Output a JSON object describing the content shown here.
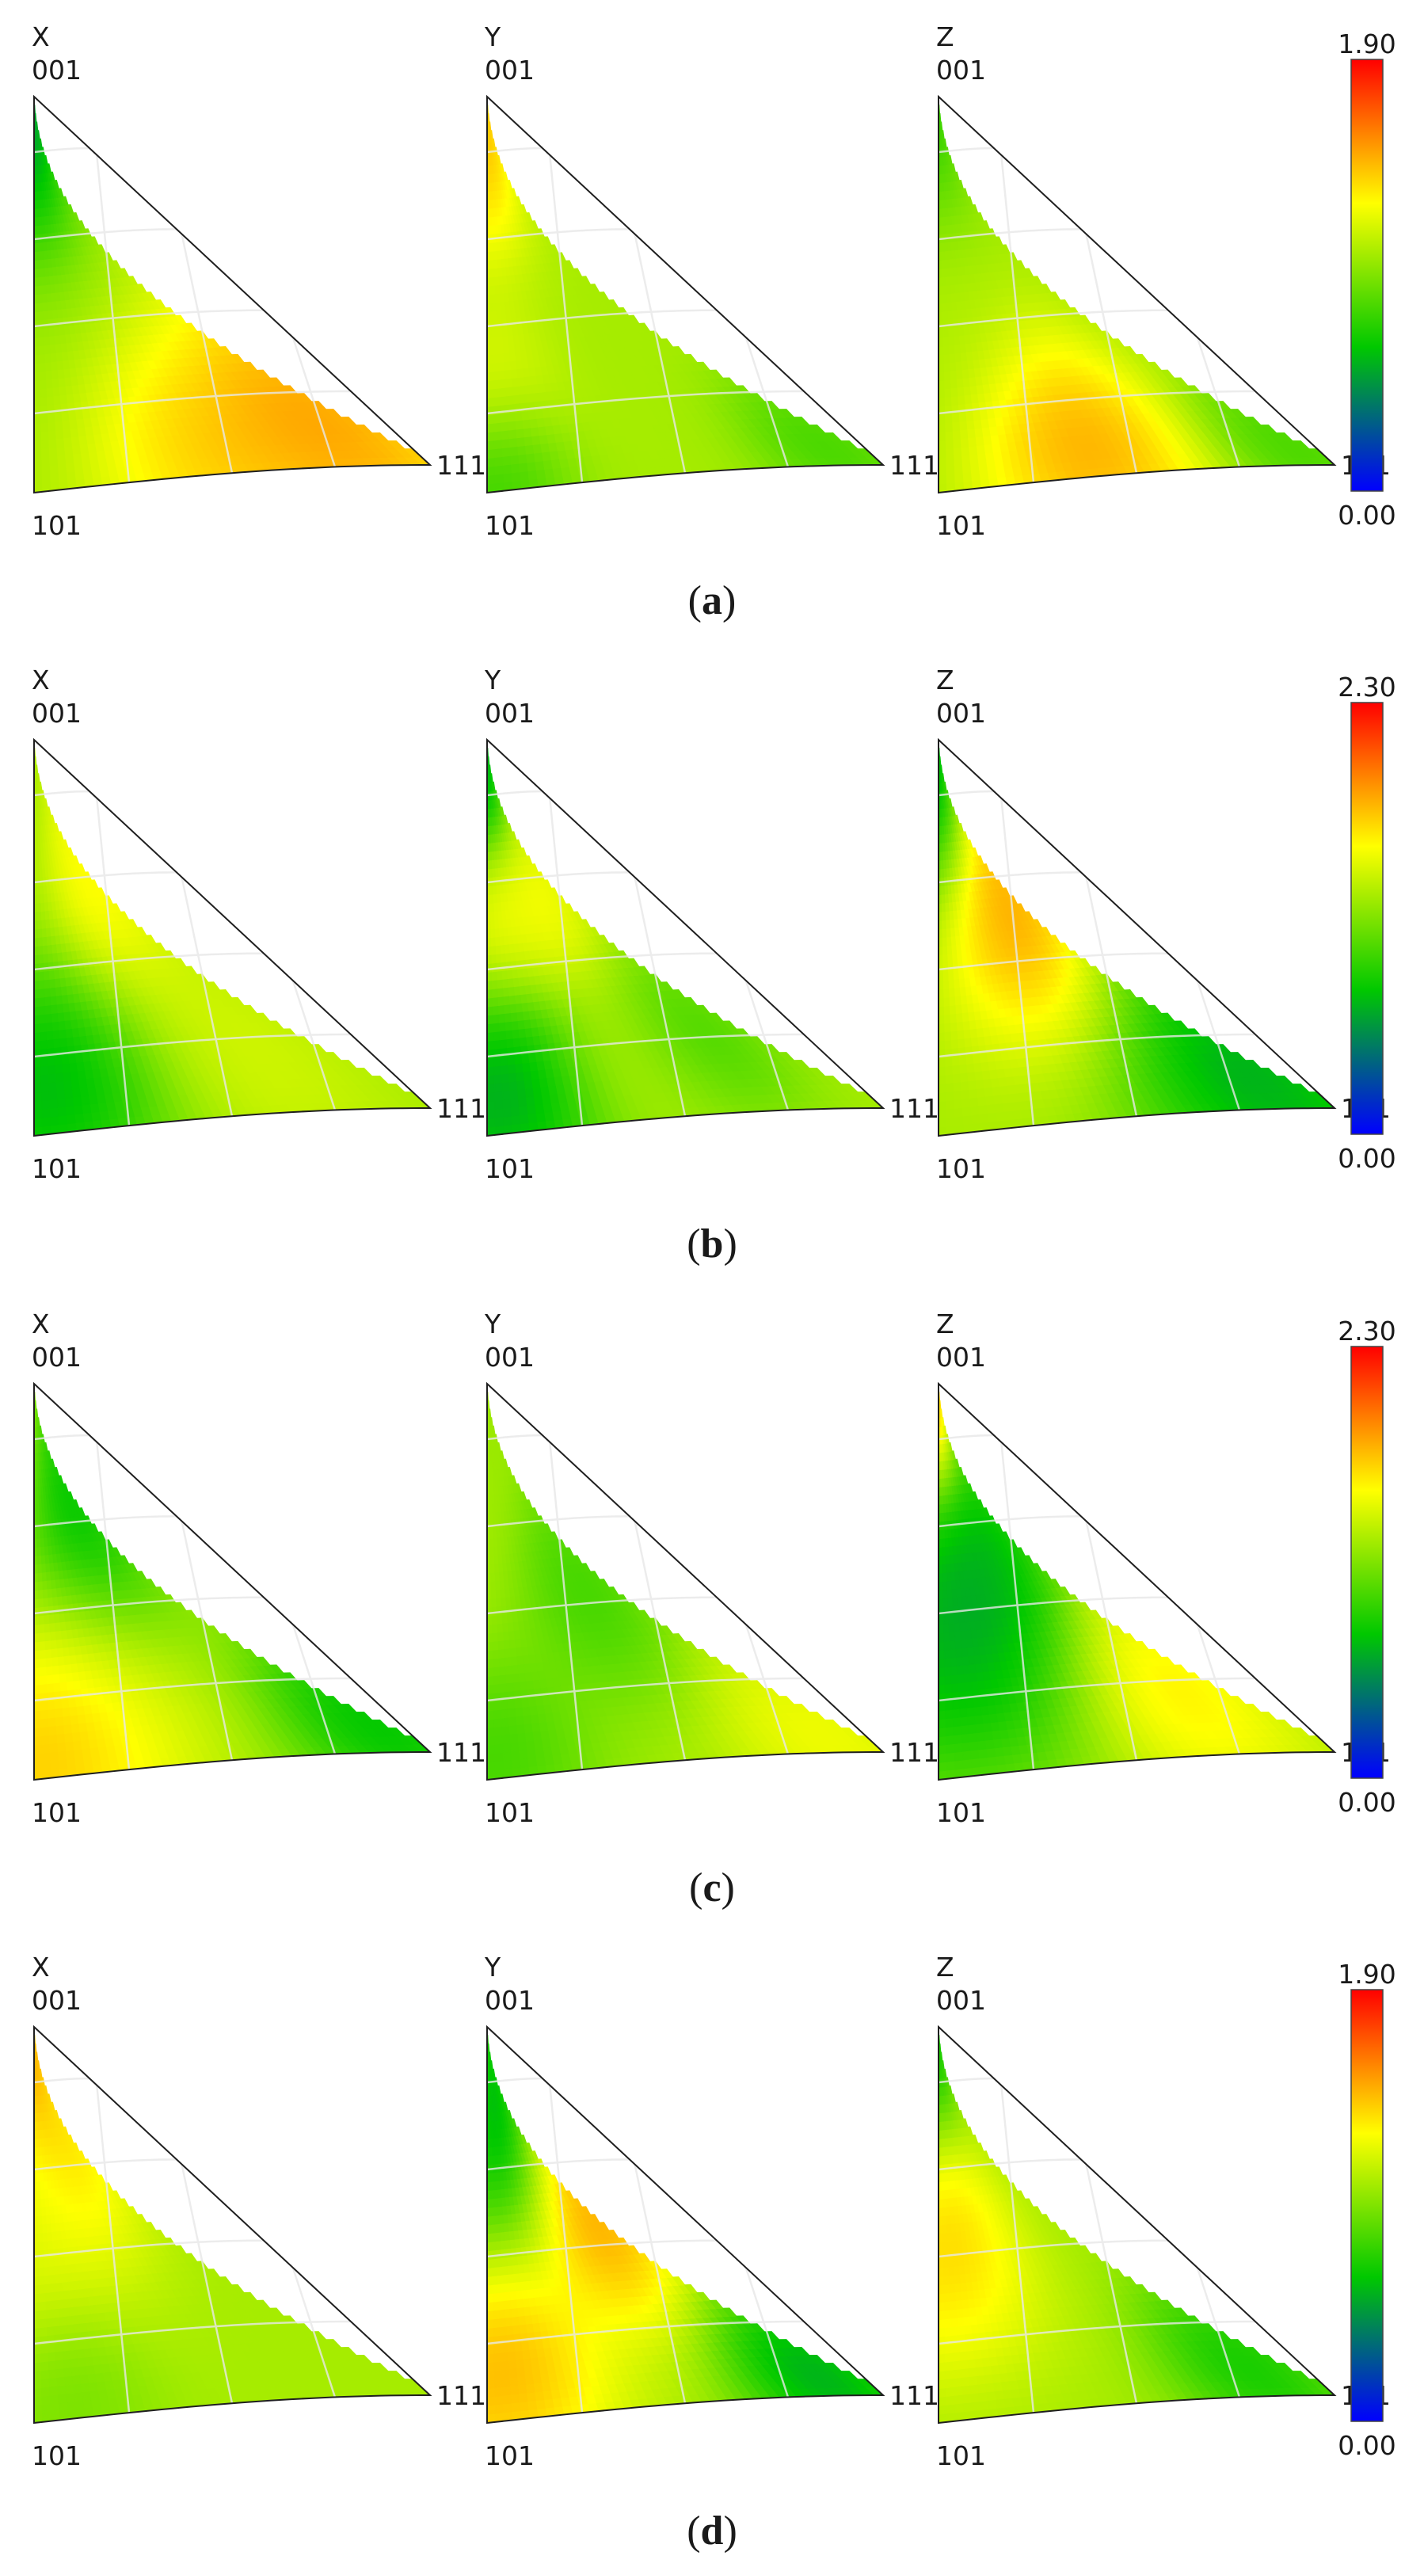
{
  "colormap": {
    "stops": [
      "#0000ff",
      "#00c800",
      "#ffff00",
      "#ff0000"
    ]
  },
  "axes": [
    "X",
    "Y",
    "Z"
  ],
  "corners": {
    "top": "001",
    "bottom_left": "101",
    "right": "111"
  },
  "rows": [
    {
      "letter": "a",
      "paren_open": "(",
      "paren_close": ")",
      "scale_max": "1.90",
      "scale_min": "0.00",
      "panels": [
        {
          "axis": "X",
          "peaks": [
            {
              "u": 0.02,
              "v": 0.97,
              "value": 0.0,
              "radius": 0.22
            },
            {
              "u": 0.82,
              "v": 0.12,
              "value": 1.9,
              "radius": 0.22
            },
            {
              "u": 0.45,
              "v": 0.05,
              "value": 1.6,
              "radius": 0.18
            }
          ]
        },
        {
          "axis": "Y",
          "peaks": [
            {
              "u": 0.03,
              "v": 0.92,
              "value": 1.75,
              "radius": 0.2
            },
            {
              "u": 0.02,
              "v": 0.25,
              "value": 1.3,
              "radius": 0.14
            },
            {
              "u": 0.02,
              "v": 0.05,
              "value": 0.45,
              "radius": 0.12
            },
            {
              "u": 0.9,
              "v": 0.05,
              "value": 0.6,
              "radius": 0.12
            }
          ]
        },
        {
          "axis": "Z",
          "peaks": [
            {
              "u": 0.02,
              "v": 0.95,
              "value": 0.5,
              "radius": 0.2
            },
            {
              "u": 0.4,
              "v": 0.08,
              "value": 1.85,
              "radius": 0.18
            },
            {
              "u": 0.93,
              "v": 0.05,
              "value": 0.6,
              "radius": 0.12
            },
            {
              "u": 0.05,
              "v": 0.5,
              "value": 1.1,
              "radius": 0.2
            }
          ]
        }
      ]
    },
    {
      "letter": "b",
      "paren_open": "(",
      "paren_close": ")",
      "scale_max": "2.30",
      "scale_min": "0.00",
      "panels": [
        {
          "axis": "X",
          "peaks": [
            {
              "u": 0.38,
              "v": 0.62,
              "value": 1.8,
              "radius": 0.18
            },
            {
              "u": 0.04,
              "v": 0.12,
              "value": 0.2,
              "radius": 0.2
            },
            {
              "u": 0.65,
              "v": 0.15,
              "value": 1.5,
              "radius": 0.18
            }
          ]
        },
        {
          "axis": "Y",
          "peaks": [
            {
              "u": 0.02,
              "v": 0.95,
              "value": 0.1,
              "radius": 0.16
            },
            {
              "u": 0.08,
              "v": 0.55,
              "value": 1.7,
              "radius": 0.14
            },
            {
              "u": 0.35,
              "v": 0.58,
              "value": 1.7,
              "radius": 0.14
            },
            {
              "u": 0.04,
              "v": 0.1,
              "value": 0.1,
              "radius": 0.18
            },
            {
              "u": 0.65,
              "v": 0.2,
              "value": 0.7,
              "radius": 0.14
            },
            {
              "u": 0.45,
              "v": 0.15,
              "value": 1.4,
              "radius": 0.14
            }
          ]
        },
        {
          "axis": "Z",
          "peaks": [
            {
              "u": 0.02,
              "v": 0.96,
              "value": 0.1,
              "radius": 0.2
            },
            {
              "u": 0.4,
              "v": 0.55,
              "value": 2.3,
              "radius": 0.22
            },
            {
              "u": 0.85,
              "v": 0.1,
              "value": 0.1,
              "radius": 0.22
            }
          ]
        }
      ]
    },
    {
      "letter": "c",
      "paren_open": "(",
      "paren_close": ")",
      "scale_max": "2.30",
      "scale_min": "0.00",
      "panels": [
        {
          "axis": "X",
          "peaks": [
            {
              "u": 0.3,
              "v": 0.65,
              "value": 0.3,
              "radius": 0.2
            },
            {
              "u": 0.03,
              "v": 0.05,
              "value": 2.1,
              "radius": 0.18
            },
            {
              "u": 0.93,
              "v": 0.07,
              "value": 0.3,
              "radius": 0.16
            },
            {
              "u": 0.2,
              "v": 0.2,
              "value": 1.6,
              "radius": 0.2
            }
          ]
        },
        {
          "axis": "Y",
          "peaks": [
            {
              "u": 0.05,
              "v": 0.95,
              "value": 1.2,
              "radius": 0.18
            },
            {
              "u": 0.45,
              "v": 0.45,
              "value": 0.7,
              "radius": 0.18
            },
            {
              "u": 0.88,
              "v": 0.05,
              "value": 1.7,
              "radius": 0.16
            },
            {
              "u": 0.02,
              "v": 0.05,
              "value": 0.7,
              "radius": 0.16
            }
          ]
        },
        {
          "axis": "Z",
          "peaks": [
            {
              "u": 0.02,
              "v": 0.95,
              "value": 2.2,
              "radius": 0.14
            },
            {
              "u": 0.08,
              "v": 0.4,
              "value": 0.1,
              "radius": 0.26
            },
            {
              "u": 0.35,
              "v": 0.55,
              "value": 0.5,
              "radius": 0.16
            },
            {
              "u": 0.7,
              "v": 0.18,
              "value": 1.9,
              "radius": 0.18
            }
          ]
        }
      ]
    },
    {
      "letter": "d",
      "paren_open": "(",
      "paren_close": ")",
      "scale_max": "1.90",
      "scale_min": "0.00",
      "panels": [
        {
          "axis": "X",
          "peaks": [
            {
              "u": 0.02,
              "v": 0.95,
              "value": 1.85,
              "radius": 0.18
            },
            {
              "u": 0.3,
              "v": 0.68,
              "value": 1.55,
              "radius": 0.18
            },
            {
              "u": 0.05,
              "v": 0.45,
              "value": 1.3,
              "radius": 0.2
            },
            {
              "u": 0.1,
              "v": 0.08,
              "value": 0.8,
              "radius": 0.14
            }
          ]
        },
        {
          "axis": "Y",
          "peaks": [
            {
              "u": 0.12,
              "v": 0.78,
              "value": 0.15,
              "radius": 0.2
            },
            {
              "u": 0.5,
              "v": 0.5,
              "value": 1.9,
              "radius": 0.18
            },
            {
              "u": 0.04,
              "v": 0.12,
              "value": 1.8,
              "radius": 0.18
            },
            {
              "u": 0.88,
              "v": 0.06,
              "value": 0.1,
              "radius": 0.14
            }
          ]
        },
        {
          "axis": "Z",
          "peaks": [
            {
              "u": 0.03,
              "v": 0.96,
              "value": 0.3,
              "radius": 0.16
            },
            {
              "u": 0.05,
              "v": 0.45,
              "value": 1.65,
              "radius": 0.2
            },
            {
              "u": 0.85,
              "v": 0.08,
              "value": 0.35,
              "radius": 0.14
            }
          ]
        }
      ]
    }
  ]
}
